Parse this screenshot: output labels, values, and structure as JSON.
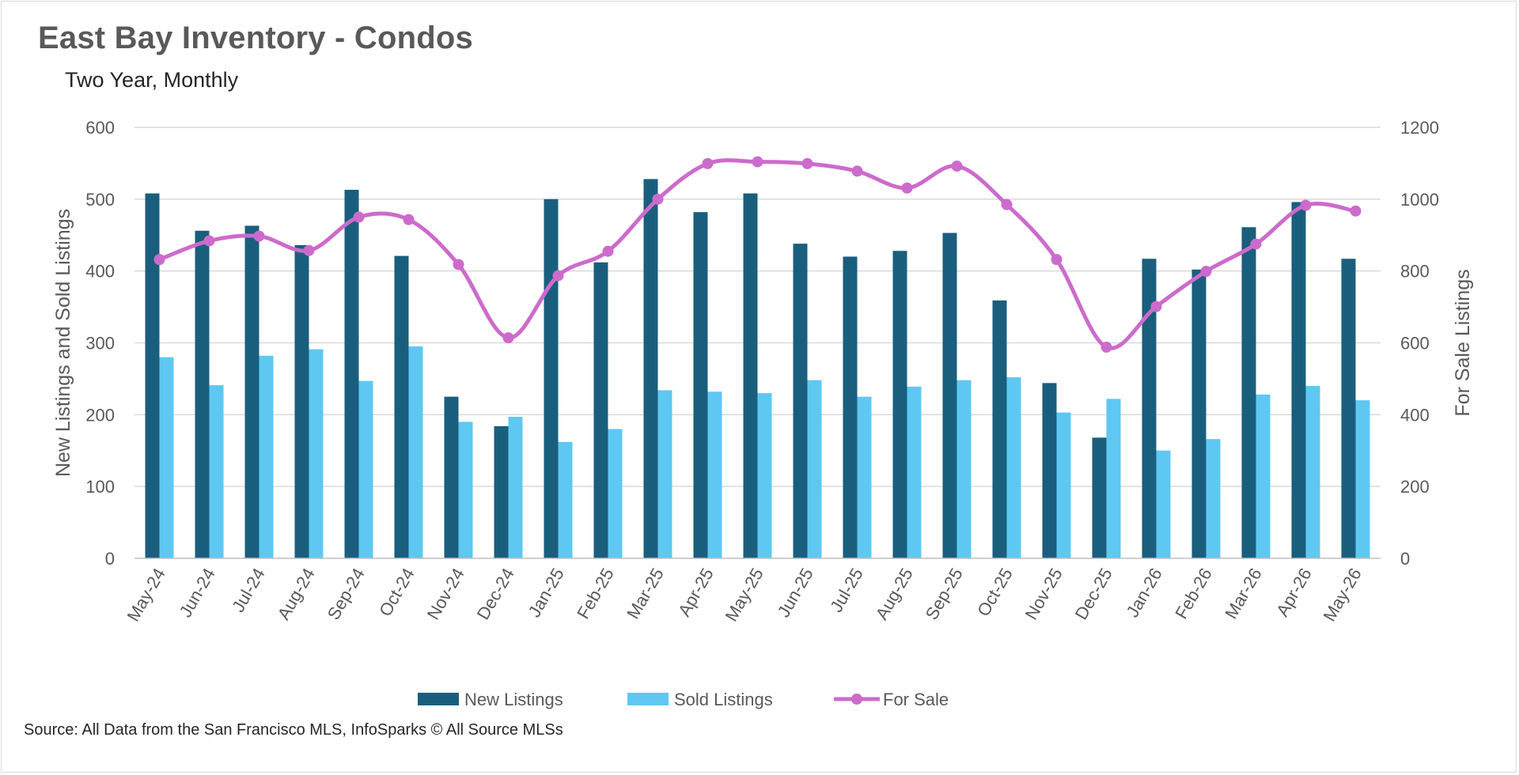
{
  "chart_data": {
    "type": "bar",
    "title": "East Bay Inventory - Condos",
    "subtitle": "Two Year, Monthly",
    "source": "Source: All Data from the San Francisco MLS, InfoSparks © All Source MLSs",
    "ylabel": "New Listings and Sold Listings",
    "y2label": "For Sale Listings",
    "ylim": [
      0,
      600
    ],
    "y2lim": [
      0,
      1200
    ],
    "yticks": [
      "0",
      "100",
      "200",
      "300",
      "400",
      "500",
      "600"
    ],
    "y2ticks": [
      "0",
      "200",
      "400",
      "600",
      "800",
      "1000",
      "1200"
    ],
    "grid": true,
    "legend_position": "bottom",
    "categories": [
      "May-24",
      "Jun-24",
      "Jul-24",
      "Aug-24",
      "Sep-24",
      "Oct-24",
      "Nov-24",
      "Dec-24",
      "Jan-25",
      "Feb-25",
      "Mar-25",
      "Apr-25",
      "May-25",
      "Jun-25",
      "Jul-25",
      "Aug-25",
      "Sep-25",
      "Oct-25",
      "Nov-25",
      "Dec-25",
      "Jan-26",
      "Feb-26",
      "Mar-26",
      "Apr-26",
      "May-26"
    ],
    "series": [
      {
        "name": "New Listings",
        "type": "bar",
        "axis": "left",
        "color": "#1a5e7e",
        "values": [
          508,
          456,
          463,
          436,
          513,
          421,
          225,
          184,
          500,
          412,
          528,
          482,
          508,
          438,
          420,
          428,
          453,
          359,
          244,
          168,
          417,
          402,
          461,
          496,
          417
        ]
      },
      {
        "name": "Sold Listings",
        "type": "bar",
        "axis": "left",
        "color": "#5ec8f2",
        "values": [
          280,
          241,
          282,
          291,
          247,
          295,
          190,
          197,
          162,
          180,
          234,
          232,
          230,
          248,
          225,
          239,
          248,
          252,
          203,
          222,
          150,
          166,
          228,
          240,
          220
        ]
      },
      {
        "name": "For Sale",
        "type": "line",
        "axis": "right",
        "color": "#cc6bcc",
        "values": [
          832,
          884,
          897,
          857,
          950,
          943,
          818,
          614,
          787,
          855,
          1000,
          1099,
          1104,
          1099,
          1078,
          1031,
          1092,
          985,
          832,
          588,
          701,
          799,
          875,
          983,
          967
        ]
      }
    ]
  }
}
